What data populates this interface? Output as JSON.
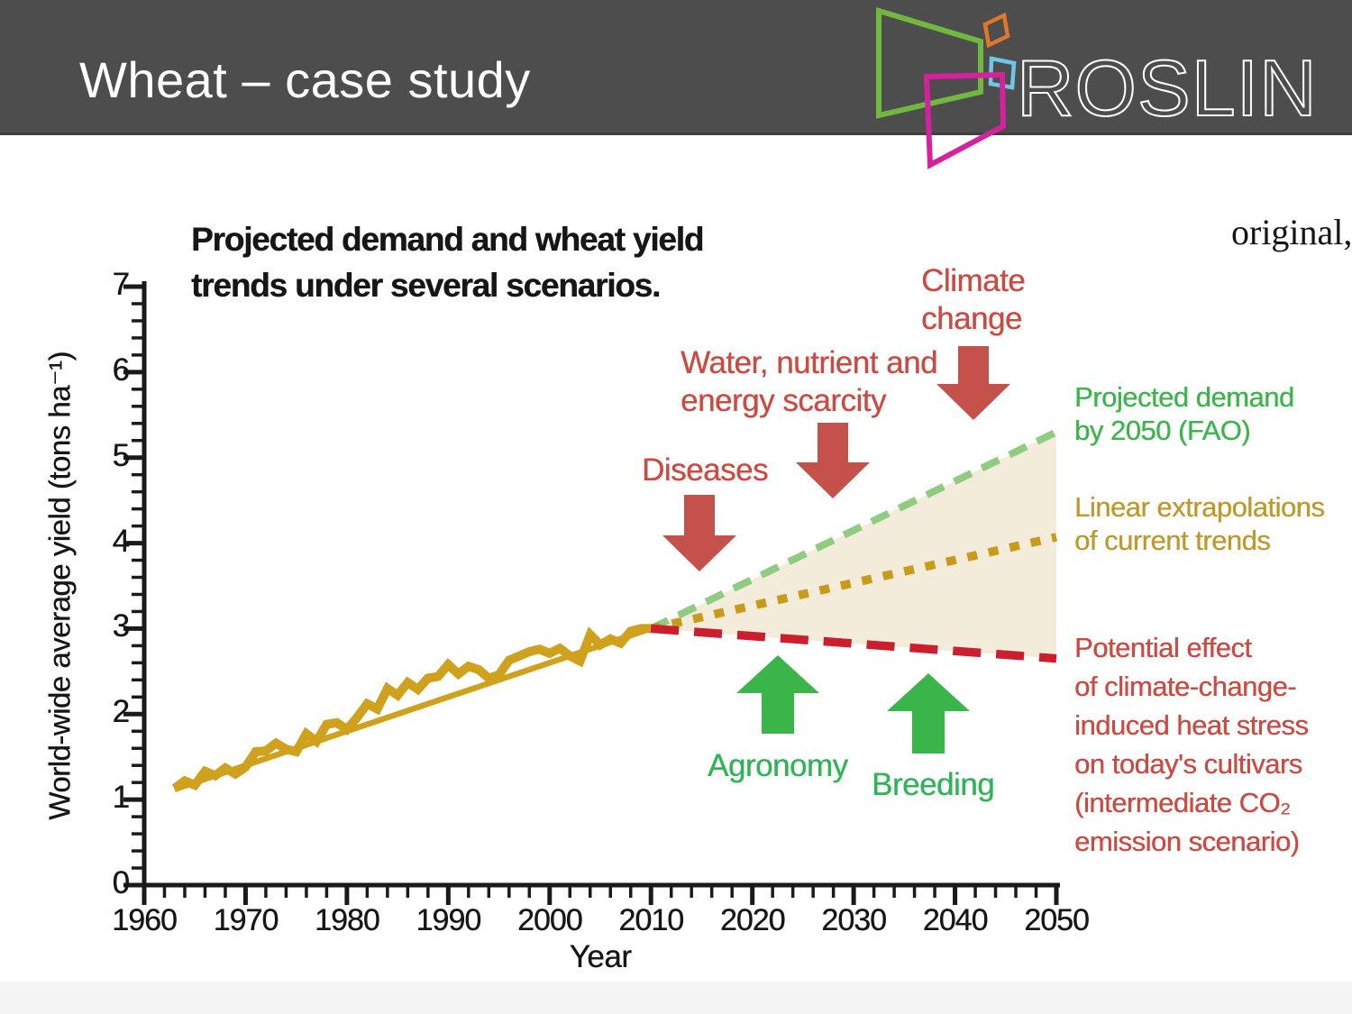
{
  "header": {
    "title": "Wheat – case study",
    "logo": {
      "text": "ROSLIN",
      "frame_colors": {
        "green": "#72B840",
        "orange": "#E2762B",
        "blue": "#6FC6E7",
        "pink": "#D6219C"
      }
    }
  },
  "watermark": "original,",
  "colors": {
    "header_bg": "#4D4D4D",
    "axis": "#1A1A1A",
    "shaded_region": "#F3ECDB"
  },
  "chart_data": {
    "type": "line",
    "title_lines": [
      "Projected demand and wheat yield",
      "trends under several scenarios."
    ],
    "xlabel": "Year",
    "ylabel": "World-wide average yield (tons ha⁻¹)",
    "xlim": [
      1960,
      2050
    ],
    "ylim": [
      0,
      7
    ],
    "x_major_ticks": [
      "1960",
      "1970",
      "1980",
      "1990",
      "2000",
      "2010",
      "2020",
      "2030",
      "2040",
      "2050"
    ],
    "x_minor_step": 2,
    "y_major_ticks": [
      "0",
      "1",
      "2",
      "3",
      "4",
      "5",
      "6",
      "7"
    ],
    "y_minor_step": 0.2,
    "grid": false,
    "series": [
      {
        "name": "historical-yield-annual",
        "style": "solid-jagged",
        "color": "#CFA11D",
        "width": 10,
        "points": [
          [
            1963,
            1.13
          ],
          [
            1964,
            1.22
          ],
          [
            1965,
            1.17
          ],
          [
            1966,
            1.33
          ],
          [
            1967,
            1.28
          ],
          [
            1968,
            1.37
          ],
          [
            1969,
            1.3
          ],
          [
            1970,
            1.38
          ],
          [
            1971,
            1.56
          ],
          [
            1972,
            1.57
          ],
          [
            1973,
            1.66
          ],
          [
            1974,
            1.59
          ],
          [
            1975,
            1.56
          ],
          [
            1976,
            1.77
          ],
          [
            1977,
            1.68
          ],
          [
            1978,
            1.88
          ],
          [
            1979,
            1.9
          ],
          [
            1980,
            1.82
          ],
          [
            1981,
            1.96
          ],
          [
            1982,
            2.12
          ],
          [
            1983,
            2.06
          ],
          [
            1984,
            2.3
          ],
          [
            1985,
            2.22
          ],
          [
            1986,
            2.37
          ],
          [
            1987,
            2.29
          ],
          [
            1988,
            2.42
          ],
          [
            1989,
            2.44
          ],
          [
            1990,
            2.58
          ],
          [
            1991,
            2.47
          ],
          [
            1992,
            2.56
          ],
          [
            1993,
            2.52
          ],
          [
            1994,
            2.42
          ],
          [
            1995,
            2.46
          ],
          [
            1996,
            2.63
          ],
          [
            1997,
            2.68
          ],
          [
            1998,
            2.73
          ],
          [
            1999,
            2.76
          ],
          [
            2000,
            2.71
          ],
          [
            2001,
            2.77
          ],
          [
            2002,
            2.68
          ],
          [
            2003,
            2.62
          ],
          [
            2004,
            2.93
          ],
          [
            2005,
            2.81
          ],
          [
            2006,
            2.88
          ],
          [
            2007,
            2.83
          ],
          [
            2008,
            2.97
          ],
          [
            2009,
            3.0
          ],
          [
            2010,
            3.0
          ]
        ]
      },
      {
        "name": "historical-trend",
        "style": "solid",
        "color": "#CFA11D",
        "width": 6.5,
        "points": [
          [
            1963,
            1.12
          ],
          [
            2010,
            3.0
          ]
        ]
      },
      {
        "name": "projected-demand",
        "label": "Projected demand by 2050 (FAO)",
        "style": "dashed",
        "color": "#8FCB80",
        "width": 8,
        "dash": [
          21,
          13
        ],
        "points": [
          [
            2010,
            3.0
          ],
          [
            2050,
            5.3
          ]
        ]
      },
      {
        "name": "linear-extrapolation",
        "label": "Linear extrapolations of current trends",
        "style": "dotted",
        "color": "#C89B1B",
        "width": 9.5,
        "dash": [
          11,
          13
        ],
        "points": [
          [
            2010,
            3.0
          ],
          [
            2050,
            4.07
          ]
        ]
      },
      {
        "name": "heat-stress",
        "label": "Potential effect of climate-change-induced heat stress on today's cultivars (intermediate CO₂ emission scenario)",
        "style": "dashed",
        "color": "#CB1F2E",
        "width": 9.5,
        "dash": [
          31,
          17
        ],
        "points": [
          [
            2010,
            3.0
          ],
          [
            2050,
            2.65
          ]
        ]
      }
    ],
    "shaded_region": {
      "color": "#F3ECDB",
      "vertices": [
        [
          2010,
          3.0
        ],
        [
          2050,
          5.3
        ],
        [
          2050,
          2.65
        ]
      ]
    }
  },
  "legend": {
    "projected_demand": {
      "lines": [
        "Projected demand",
        "by 2050 (FAO)"
      ],
      "color": "#3BB54A"
    },
    "linear_extrapolation": {
      "lines": [
        "Linear extrapolations",
        "of current trends"
      ],
      "color": "#BF992B"
    },
    "heat_stress": {
      "lines": [
        "Potential effect",
        "of climate-change-",
        "induced heat stress",
        "on today's cultivars",
        "(intermediate CO₂",
        "emission scenario)"
      ],
      "color": "#CD4A42"
    }
  },
  "annotations": {
    "diseases": {
      "lines": [
        "Diseases"
      ],
      "color": "#CD4A42",
      "arrow_color": "#C4524B",
      "direction": "down"
    },
    "water_energy": {
      "lines": [
        "Water, nutrient and",
        "energy scarcity"
      ],
      "color": "#CD4A42",
      "arrow_color": "#C4524B",
      "direction": "down"
    },
    "climate_change": {
      "lines": [
        "Climate",
        "change"
      ],
      "color": "#CD4A42",
      "arrow_color": "#C4524B",
      "direction": "down"
    },
    "agronomy": {
      "lines": [
        "Agronomy"
      ],
      "color": "#2FB457",
      "arrow_color": "#3AB54A",
      "direction": "up"
    },
    "breeding": {
      "lines": [
        "Breeding"
      ],
      "color": "#2FB457",
      "arrow_color": "#3AB54A",
      "direction": "up"
    }
  }
}
